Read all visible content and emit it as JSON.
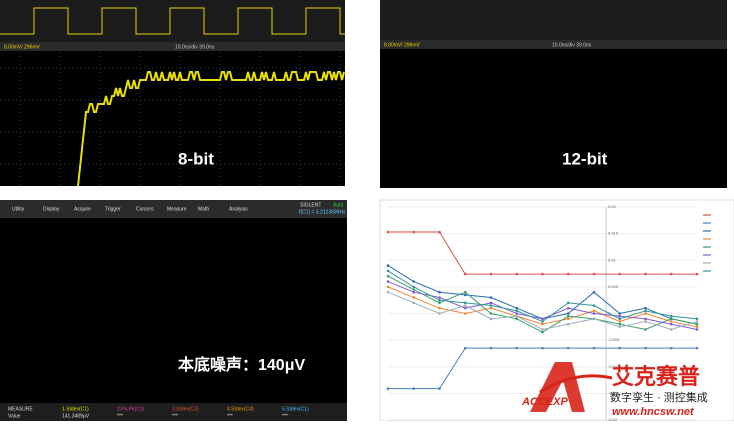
{
  "panels": {
    "scope_8bit": {
      "label": "8-bit",
      "status_left": "8.00mV/ 296mV",
      "status_mid": "10.0ns/div 39.0ns"
    },
    "scope_12bit": {
      "label": "12-bit",
      "status_left": "8.00mV/ 296mV",
      "status_mid": "10.0ns/div 39.0ns"
    },
    "scope_noise": {
      "label": "本底噪声：140μV",
      "menu": [
        "Utility",
        "Display",
        "Acquire",
        "Trigger",
        "Cursors",
        "Measure",
        "Math",
        "Analysis"
      ],
      "brand": "SIGLENT",
      "mode": "Auto",
      "freq": "f(C1) = 3.2123699Hz",
      "measure_title": "MEASURE",
      "value_title": "Value",
      "measure_items": [
        "1.Stdev(C1)",
        "2.Pk-Pk(C1)",
        "3.Stdev(C3)",
        "4.Stdev(C4)",
        "5.Stdev(C1)"
      ],
      "measure_values": [
        "141.3489μV",
        "***",
        "***",
        "***",
        "***"
      ]
    }
  },
  "chart_data": {
    "type": "line",
    "categories": [
      null,
      null,
      null,
      null,
      null,
      null,
      null,
      null,
      null,
      null,
      null,
      null,
      null
    ],
    "ylim": [
      -0.02,
      0.02
    ],
    "yticks": [
      0.02,
      0.015,
      0.01,
      0.005,
      0,
      -0.005,
      -0.01,
      -0.015,
      -0.02
    ],
    "series": [
      {
        "color": "#d9534f",
        "values": [
          0.0153,
          0.0153,
          0.0153,
          0.0074,
          0.0074,
          0.0074,
          0.0074,
          0.0074,
          0.0074,
          0.0074,
          0.0074,
          0.0074,
          0.0074
        ]
      },
      {
        "color": "#4a7fc1",
        "values": [
          -0.0141,
          -0.0141,
          -0.0141,
          -0.0065,
          -0.0065,
          -0.0065,
          -0.0065,
          -0.0065,
          -0.0065,
          -0.0065,
          -0.0065,
          -0.0065,
          -0.0065
        ]
      },
      {
        "color": "#2b6cb0",
        "values": [
          0.009,
          0.006,
          0.004,
          0.0035,
          0.003,
          0.001,
          -0.001,
          0.0,
          0.004,
          0.0,
          0.001,
          -0.001,
          -0.002
        ]
      },
      {
        "color": "#ed8936",
        "values": [
          0.005,
          0.003,
          0.001,
          0.0,
          0.001,
          -0.0005,
          -0.002,
          -0.001,
          0.0005,
          -0.0015,
          0.0,
          -0.0015,
          -0.0025
        ]
      },
      {
        "color": "#38a169",
        "values": [
          0.007,
          0.0045,
          0.002,
          0.004,
          0.0,
          -0.001,
          -0.0035,
          -0.0005,
          -0.001,
          -0.002,
          -0.003,
          -0.001,
          -0.002
        ]
      },
      {
        "color": "#805ad5",
        "values": [
          0.006,
          0.004,
          0.003,
          0.001,
          0.002,
          0.0,
          -0.001,
          0.001,
          0.0,
          -0.0005,
          -0.001,
          -0.002,
          -0.003
        ]
      },
      {
        "color": "#a0aec0",
        "values": [
          0.004,
          0.002,
          0.0,
          0.0015,
          -0.001,
          -0.0005,
          -0.003,
          -0.002,
          -0.001,
          -0.0025,
          -0.0015,
          -0.003,
          -0.0015
        ]
      },
      {
        "color": "#319795",
        "values": [
          0.008,
          0.005,
          0.0025,
          0.002,
          0.0015,
          0.0005,
          -0.0015,
          0.002,
          0.0015,
          -0.001,
          0.0005,
          -0.0005,
          -0.001
        ]
      }
    ]
  },
  "watermark": {
    "brand": "艾克赛普",
    "logo": "ACCEXP",
    "slogan": "数字孪生 · 测控集成",
    "url": "www.hncsw.net"
  }
}
